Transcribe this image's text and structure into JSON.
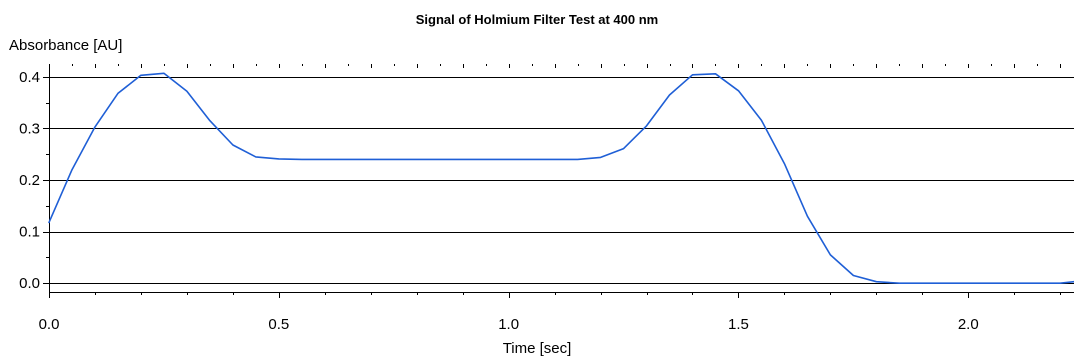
{
  "chart_data": {
    "type": "line",
    "title": "Signal of Holmium Filter Test at 400 nm",
    "xlabel": "Time [sec]",
    "ylabel": "Absorbance [AU]",
    "xlim": [
      0,
      2.23
    ],
    "ylim": [
      -0.017,
      0.425
    ],
    "xticks": [
      0.0,
      0.5,
      1.0,
      1.5,
      2.0
    ],
    "xtick_labels": [
      "0.0",
      "0.5",
      "1.0",
      "1.5",
      "2.0"
    ],
    "yticks": [
      0.0,
      0.1,
      0.2,
      0.3,
      0.4
    ],
    "ytick_labels": [
      "0.0",
      "0.1",
      "0.2",
      "0.3",
      "0.4"
    ],
    "grid": "horizontal",
    "line_color": "#1f5fd6",
    "series": [
      {
        "x": [
          0.0,
          0.05,
          0.1,
          0.15,
          0.2,
          0.25,
          0.3,
          0.35,
          0.4,
          0.45,
          0.5,
          0.55,
          0.6,
          0.7,
          0.8,
          0.9,
          1.0,
          1.1,
          1.15,
          1.2,
          1.25,
          1.3,
          1.35,
          1.4,
          1.45,
          1.5,
          1.55,
          1.6,
          1.65,
          1.7,
          1.75,
          1.8,
          1.85,
          1.9,
          2.0,
          2.1,
          2.2,
          2.23
        ],
        "y": [
          0.118,
          0.22,
          0.303,
          0.368,
          0.403,
          0.407,
          0.372,
          0.315,
          0.268,
          0.245,
          0.241,
          0.24,
          0.24,
          0.24,
          0.24,
          0.24,
          0.24,
          0.24,
          0.24,
          0.244,
          0.261,
          0.305,
          0.365,
          0.404,
          0.406,
          0.373,
          0.316,
          0.232,
          0.13,
          0.055,
          0.015,
          0.003,
          0.0,
          0.0,
          0.0,
          0.0,
          0.0,
          0.003
        ]
      }
    ]
  }
}
